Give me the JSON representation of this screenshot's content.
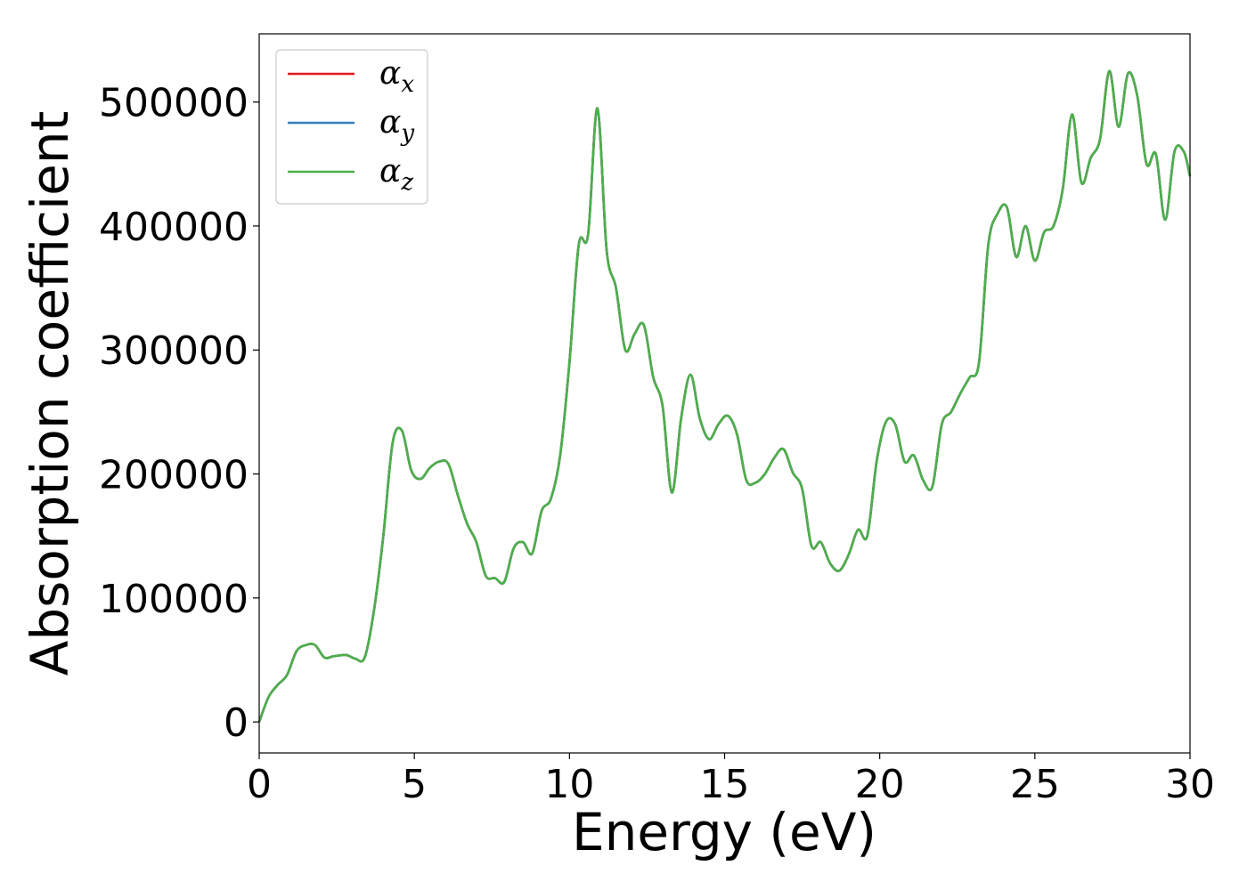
{
  "chart_data": {
    "type": "line",
    "xlabel": "Energy (eV)",
    "ylabel": "Absorption coefficient",
    "xlim": [
      0,
      30
    ],
    "ylim": [
      -25000,
      555000
    ],
    "xticks": [
      0,
      5,
      10,
      15,
      20,
      25,
      30
    ],
    "xtick_labels": [
      "0",
      "5",
      "10",
      "15",
      "20",
      "25",
      "30"
    ],
    "yticks": [
      0,
      100000,
      200000,
      300000,
      400000,
      500000
    ],
    "ytick_labels": [
      "0",
      "100000",
      "200000",
      "300000",
      "400000",
      "500000"
    ],
    "grid": false,
    "legend_position": "top-left",
    "x": [
      0.0,
      0.3,
      0.6,
      0.9,
      1.2,
      1.5,
      1.8,
      2.1,
      2.4,
      2.8,
      3.1,
      3.4,
      3.7,
      4.0,
      4.3,
      4.6,
      4.9,
      5.2,
      5.5,
      5.8,
      6.1,
      6.4,
      6.7,
      7.0,
      7.3,
      7.6,
      7.9,
      8.2,
      8.5,
      8.8,
      9.1,
      9.4,
      9.7,
      10.0,
      10.3,
      10.6,
      10.9,
      11.2,
      11.5,
      11.8,
      12.1,
      12.4,
      12.7,
      13.0,
      13.3,
      13.6,
      13.9,
      14.2,
      14.5,
      14.8,
      15.1,
      15.4,
      15.7,
      16.0,
      16.3,
      16.6,
      16.9,
      17.2,
      17.5,
      17.8,
      18.1,
      18.4,
      18.7,
      19.0,
      19.3,
      19.6,
      19.9,
      20.2,
      20.5,
      20.8,
      21.1,
      21.4,
      21.7,
      22.0,
      22.3,
      22.6,
      22.9,
      23.2,
      23.5,
      23.8,
      24.1,
      24.4,
      24.7,
      25.0,
      25.3,
      25.6,
      25.9,
      26.2,
      26.5,
      26.8,
      27.1,
      27.4,
      27.7,
      28.0,
      28.3,
      28.6,
      28.9,
      29.2,
      29.5,
      29.8,
      30.0
    ],
    "series": [
      {
        "name": "α_x",
        "color": "#e41a1c",
        "y": [
          0,
          20000,
          30000,
          38000,
          57000,
          62000,
          62000,
          52000,
          53000,
          54000,
          51000,
          52000,
          90000,
          150000,
          225000,
          235000,
          203000,
          196000,
          205000,
          210000,
          208000,
          183000,
          160000,
          145000,
          118000,
          116000,
          113000,
          140000,
          145000,
          136000,
          170000,
          180000,
          215000,
          290000,
          385000,
          393000,
          495000,
          380000,
          350000,
          300000,
          313000,
          320000,
          278000,
          255000,
          185000,
          245000,
          280000,
          245000,
          228000,
          240000,
          247000,
          232000,
          195000,
          193000,
          200000,
          213000,
          220000,
          201000,
          188000,
          142000,
          145000,
          128000,
          122000,
          135000,
          155000,
          150000,
          210000,
          242000,
          240000,
          210000,
          215000,
          195000,
          190000,
          240000,
          250000,
          265000,
          278000,
          290000,
          385000,
          410000,
          415000,
          375000,
          400000,
          372000,
          395000,
          400000,
          430000,
          490000,
          435000,
          455000,
          470000,
          525000,
          480000,
          523000,
          505000,
          450000,
          458000,
          405000,
          460000,
          460000,
          440000
        ]
      },
      {
        "name": "α_y",
        "color": "#377eb8",
        "y": [
          0,
          20000,
          30000,
          38000,
          57000,
          62000,
          62000,
          52000,
          53000,
          54000,
          51000,
          52000,
          90000,
          150000,
          225000,
          235000,
          203000,
          196000,
          205000,
          210000,
          208000,
          183000,
          160000,
          145000,
          118000,
          116000,
          113000,
          140000,
          145000,
          136000,
          170000,
          180000,
          215000,
          290000,
          385000,
          393000,
          495000,
          380000,
          350000,
          300000,
          313000,
          320000,
          278000,
          255000,
          185000,
          245000,
          280000,
          245000,
          228000,
          240000,
          247000,
          232000,
          195000,
          193000,
          200000,
          213000,
          220000,
          201000,
          188000,
          142000,
          145000,
          128000,
          122000,
          135000,
          155000,
          150000,
          210000,
          242000,
          240000,
          210000,
          215000,
          195000,
          190000,
          240000,
          250000,
          265000,
          278000,
          290000,
          385000,
          410000,
          415000,
          375000,
          400000,
          372000,
          395000,
          400000,
          430000,
          490000,
          435000,
          455000,
          470000,
          525000,
          480000,
          523000,
          505000,
          450000,
          458000,
          405000,
          460000,
          460000,
          440000
        ]
      },
      {
        "name": "α_z",
        "color": "#4daf4a",
        "y": [
          0,
          20000,
          30000,
          38000,
          57000,
          62000,
          62000,
          52000,
          53000,
          54000,
          51000,
          52000,
          90000,
          150000,
          225000,
          235000,
          203000,
          196000,
          205000,
          210000,
          208000,
          183000,
          160000,
          145000,
          118000,
          116000,
          113000,
          140000,
          145000,
          136000,
          170000,
          180000,
          215000,
          290000,
          385000,
          393000,
          495000,
          380000,
          350000,
          300000,
          313000,
          320000,
          278000,
          255000,
          185000,
          245000,
          280000,
          245000,
          228000,
          240000,
          247000,
          232000,
          195000,
          193000,
          200000,
          213000,
          220000,
          201000,
          188000,
          142000,
          145000,
          128000,
          122000,
          135000,
          155000,
          150000,
          210000,
          242000,
          240000,
          210000,
          215000,
          195000,
          190000,
          240000,
          250000,
          265000,
          278000,
          290000,
          385000,
          410000,
          415000,
          375000,
          400000,
          372000,
          395000,
          400000,
          430000,
          490000,
          435000,
          455000,
          470000,
          525000,
          480000,
          523000,
          505000,
          450000,
          458000,
          405000,
          460000,
          460000,
          440000
        ]
      }
    ],
    "legend": [
      {
        "symbol": "α",
        "subscript": "x",
        "color": "#e41a1c"
      },
      {
        "symbol": "α",
        "subscript": "y",
        "color": "#377eb8"
      },
      {
        "symbol": "α",
        "subscript": "z",
        "color": "#4daf4a"
      }
    ]
  }
}
